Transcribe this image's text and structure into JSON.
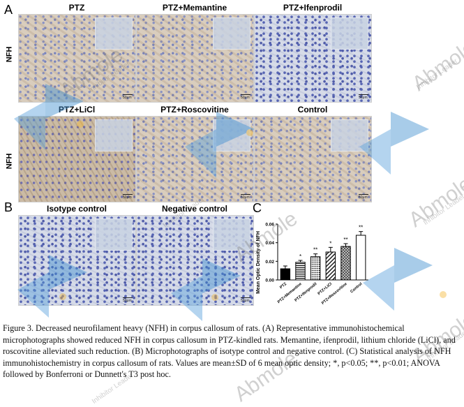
{
  "panels": {
    "a_letter": "A",
    "b_letter": "B",
    "c_letter": "C"
  },
  "row_labels": {
    "row1": "NFH",
    "row2": "NFH"
  },
  "titles": {
    "ptz": "PTZ",
    "memantine": "PTZ+Memantine",
    "ifenprodil": "PTZ+Ifenprodil",
    "licl": "PTZ+LiCl",
    "roscovitine": "PTZ+Roscovitine",
    "control": "Control",
    "isotype": "Isotype control",
    "negative": "Negative control"
  },
  "scale_bar": "50μm",
  "watermark": {
    "brand": "Abmole",
    "tagline": "Inhibitor Leader"
  },
  "chart_data": {
    "type": "bar",
    "ylabel": "Mean Optic Density of NFH",
    "ylim": [
      0,
      0.06
    ],
    "yticks": [
      "0.00",
      "0.02",
      "0.04",
      "0.06"
    ],
    "categories": [
      "PTZ",
      "PTZ+Memantine",
      "PTZ+Ifenprodil",
      "PTZ+LiCl",
      "PTZ+Roscovitine",
      "Control"
    ],
    "values": [
      0.012,
      0.019,
      0.025,
      0.03,
      0.036,
      0.048
    ],
    "errors": [
      0.003,
      0.002,
      0.003,
      0.005,
      0.003,
      0.004
    ],
    "significance": [
      "",
      "*",
      "**",
      "*",
      "**",
      "**"
    ],
    "patterns": [
      "solid-black",
      "horizontal-stripes",
      "dots",
      "diagonal-stripes",
      "crosshatch",
      "white"
    ]
  },
  "caption": {
    "text": "Figure 3. Decreased neurofilament heavy (NFH) in corpus callosum of rats. (A) Representative immunohistochemical microphotographs showed reduced NFH in corpus callosum in PTZ-kindled rats. Memantine, ifenprodil, lithium chloride (LiCl), and roscovitine alleviated such reduction. (B) Microphotographs of isotype control and negative control. (C) Statistical analysis of NFH immunohistochemistry in corpus callosum of rats. Values are mean±SD of 6 mean optic density; *, p<0.05; **, p<0.01; ANOVA followed by Bonferroni or Dunnett's T3 post hoc."
  }
}
